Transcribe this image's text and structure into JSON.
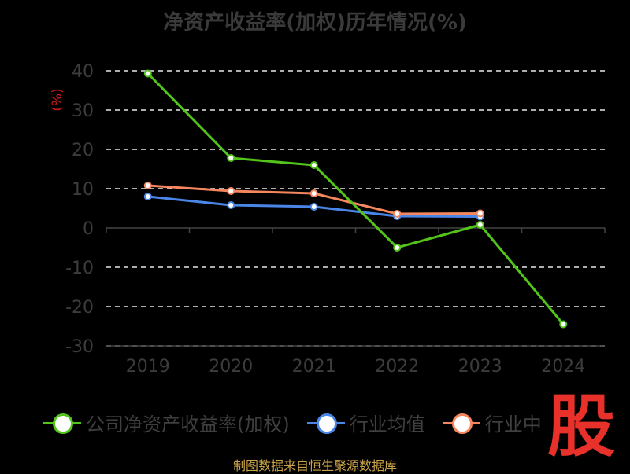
{
  "title": "净资产收益率(加权)历年情况(%)",
  "footer": "制图数据来自恒生聚源数据库",
  "logo_text": "股",
  "colors": {
    "background": "#000000",
    "grid": "#e8e8e8",
    "axis_text": "#3c3c3c",
    "ylabel": "#d11a1a",
    "series": [
      "#52c41a",
      "#4a86e8",
      "#f5865e"
    ]
  },
  "legend": [
    {
      "label": "公司净资产收益率(加权)",
      "color": "#52c41a"
    },
    {
      "label": "行业均值",
      "color": "#4a86e8"
    },
    {
      "label": "行业中",
      "color": "#f5865e"
    }
  ],
  "chart_data": {
    "type": "line",
    "title": "净资产收益率(加权)历年情况(%)",
    "ylabel": "(%)",
    "xlabel": "",
    "categories": [
      "2019",
      "2020",
      "2021",
      "2022",
      "2023",
      "2024"
    ],
    "ylim": [
      -30,
      40
    ],
    "yticks": [
      40,
      30,
      20,
      10,
      0,
      -10,
      -20,
      -30
    ],
    "grid": true,
    "legend_position": "bottom",
    "series": [
      {
        "name": "公司净资产收益率(加权)",
        "values": [
          39.3,
          17.8,
          16.0,
          -5.0,
          0.8,
          -24.5
        ]
      },
      {
        "name": "行业均值",
        "values": [
          8.0,
          5.8,
          5.4,
          3.0,
          2.9,
          null
        ]
      },
      {
        "name": "行业中",
        "values": [
          10.8,
          9.4,
          8.8,
          3.6,
          3.7,
          null
        ]
      }
    ]
  }
}
